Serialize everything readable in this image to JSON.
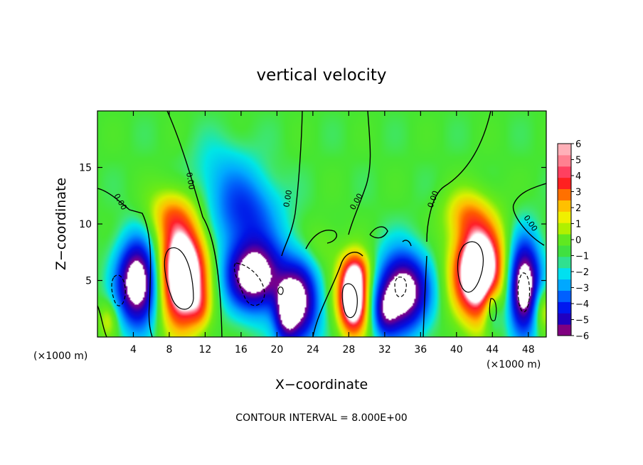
{
  "chart_data": {
    "type": "heatmap",
    "title": "vertical velocity",
    "xlabel": "X−coordinate",
    "ylabel": "Z−coordinate",
    "x_unit_left": "(×1000 m)",
    "x_unit_right": "(×1000 m)",
    "footer": "CONTOUR INTERVAL = 8.000E+00",
    "xlim": [
      0,
      50
    ],
    "ylim": [
      0,
      20
    ],
    "x_ticks": [
      4,
      8,
      12,
      16,
      20,
      24,
      28,
      32,
      36,
      40,
      44,
      48
    ],
    "y_ticks": [
      5,
      10,
      15
    ],
    "contour_levels": [
      0
    ],
    "contour_labels": [
      "0.00",
      "0.00",
      "0.00",
      "0.00",
      "0.00",
      "0.00"
    ],
    "colorbar": {
      "min": -6,
      "max": 6,
      "tick_labels": [
        "6",
        "5",
        "4",
        "3",
        "2",
        "1",
        "0",
        "−1",
        "−2",
        "−3",
        "−4",
        "−5",
        "−6"
      ],
      "colors": [
        "#800080",
        "#2000c0",
        "#0018f0",
        "#0060ff",
        "#00a8ff",
        "#00e0f0",
        "#30e090",
        "#40e040",
        "#60e820",
        "#b0f000",
        "#f0f000",
        "#ffc000",
        "#ff7000",
        "#ff2020",
        "#ff4060",
        "#ff8090",
        "#ffb0b8",
        "#ffffff"
      ]
    },
    "features": [
      {
        "kind": "downdraft",
        "x": 4.5,
        "z": 5,
        "w": -6
      },
      {
        "kind": "updraft",
        "x": 9.5,
        "z": 5.5,
        "w": 6
      },
      {
        "kind": "downdraft",
        "x": 17.5,
        "z": 5.5,
        "w": -6
      },
      {
        "kind": "downdraft",
        "x": 22.5,
        "z": 3,
        "w": -5
      },
      {
        "kind": "updraft",
        "x": 28.5,
        "z": 3.5,
        "w": 6
      },
      {
        "kind": "downdraft",
        "x": 34,
        "z": 4,
        "w": -6
      },
      {
        "kind": "updraft",
        "x": 42.5,
        "z": 5.5,
        "w": 6
      },
      {
        "kind": "downdraft",
        "x": 47.5,
        "z": 4.5,
        "w": -6
      },
      {
        "kind": "updraft",
        "x": 8,
        "z": 11,
        "w": 2
      },
      {
        "kind": "downdraft",
        "x": 16.5,
        "z": 11,
        "w": -3
      }
    ]
  }
}
